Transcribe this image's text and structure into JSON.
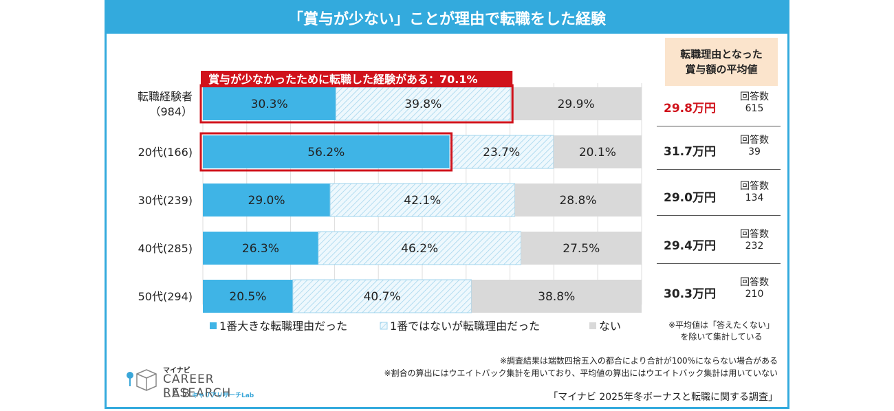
{
  "title": "「賞与が少ない」ことが理由で転職をした経験",
  "chart_data": {
    "type": "bar",
    "orientation": "horizontal-stacked-100",
    "categories": [
      "転職経験者\n（984）",
      "20代(166)",
      "30代(239)",
      "40代(285)",
      "50代(294)"
    ],
    "category_lines": [
      [
        "転職経験者",
        "（984）"
      ],
      [
        "20代(166)"
      ],
      [
        "30代(239)"
      ],
      [
        "40代(285)"
      ],
      [
        "50代(294)"
      ]
    ],
    "series": [
      {
        "name": "1番大きな転職理由だった",
        "values": [
          30.3,
          56.2,
          29.0,
          26.3,
          20.5
        ],
        "color": "#3fb4e6"
      },
      {
        "name": "1番ではないが転職理由だった",
        "values": [
          39.8,
          23.7,
          42.1,
          46.2,
          40.7
        ],
        "color": "#e9f6fc"
      },
      {
        "name": "ない",
        "values": [
          29.9,
          20.1,
          28.8,
          27.5,
          38.8
        ],
        "color": "#d9d9d9"
      }
    ],
    "value_labels": [
      [
        "30.3%",
        "39.8%",
        "29.9%"
      ],
      [
        "56.2%",
        "23.7%",
        "20.1%"
      ],
      [
        "29.0%",
        "42.1%",
        "28.8%"
      ],
      [
        "26.3%",
        "46.2%",
        "27.5%"
      ],
      [
        "20.5%",
        "40.7%",
        "38.8%"
      ]
    ],
    "xlim": [
      0,
      100
    ],
    "annotation": "賞与が少なかったために転職した経験がある：70.1%",
    "highlight_color": "#d0121b"
  },
  "avg_panel": {
    "header_line1": "転職理由となった",
    "header_line2": "賞与額の平均値",
    "count_label": "回答数",
    "rows": [
      {
        "value": "29.8万円",
        "count": "615",
        "highlight": true
      },
      {
        "value": "31.7万円",
        "count": "39",
        "highlight": false
      },
      {
        "value": "29.0万円",
        "count": "134",
        "highlight": false
      },
      {
        "value": "29.4万円",
        "count": "232",
        "highlight": false
      },
      {
        "value": "30.3万円",
        "count": "210",
        "highlight": false
      }
    ],
    "note_line1": "※平均値は「答えたくない」",
    "note_line2": "を除いて集計している"
  },
  "footnote1": "※調査結果は端数四捨五入の都合により合計が100%にならない場合がある",
  "footnote2": "※割合の算出にはウエイトバック集計を用いており、平均値の算出にはウエイトバック集計は用いていない",
  "source": "「マイナビ 2025年冬ボーナスと転職に関する調査」",
  "logo": {
    "brand": "マイナビ",
    "line1": "CAREER RESEARCH",
    "line2": "LAB",
    "sub": "キャリアリサーチLab"
  },
  "colors": {
    "accent": "#33aadd",
    "highlight": "#d0121b",
    "header_bg": "#fbe4cc"
  }
}
